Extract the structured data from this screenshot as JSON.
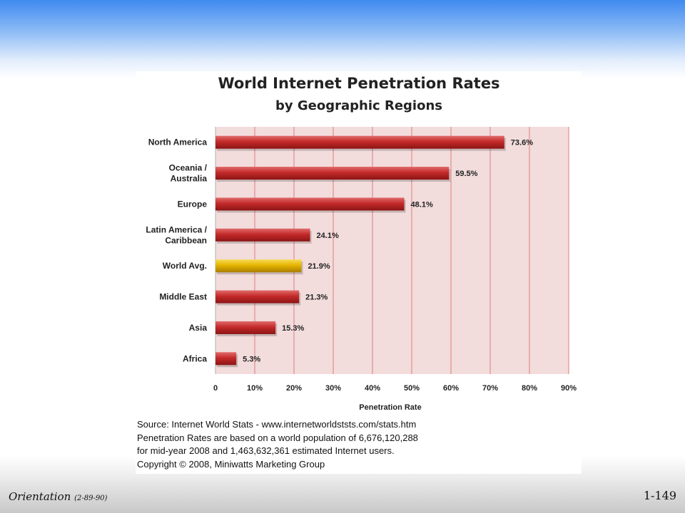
{
  "chart_data": {
    "type": "bar",
    "orientation": "horizontal",
    "title": "World Internet Penetration Rates",
    "subtitle": "by Geographic Regions",
    "categories": [
      [
        "North America"
      ],
      [
        "Oceania  /",
        "Australia"
      ],
      [
        "Europe"
      ],
      [
        "Latin America /",
        "Caribbean"
      ],
      [
        "World Avg."
      ],
      [
        "Middle East"
      ],
      [
        "Asia"
      ],
      [
        "Africa"
      ]
    ],
    "values": [
      73.6,
      59.5,
      48.1,
      24.1,
      21.9,
      21.3,
      15.3,
      5.3
    ],
    "value_labels": [
      "73.6%",
      "59.5%",
      "48.1%",
      "24.1%",
      "21.9%",
      "21.3%",
      "15.3%",
      "5.3%"
    ],
    "highlight_index": 4,
    "xlabel": "Penetration Rate",
    "xlim": [
      0,
      90
    ],
    "xticks": [
      "0",
      "10%",
      "20%",
      "30%",
      "40%",
      "50%",
      "60%",
      "70%",
      "80%",
      "90%"
    ],
    "grid": true,
    "colors": {
      "bar": "#c0282a",
      "highlight": "#e8b400",
      "plot_background": "#f2dcdc",
      "gridline": "#d98080"
    }
  },
  "source_lines": [
    "Source: Internet World Stats - www.internetworldststs.com/stats.htm",
    "Penetration Rates are based on a world population of 6,676,120,288",
    "for mid-year 2008 and 1,463,632,361 estimated Internet users.",
    "Copyright © 2008, Miniwatts Marketing Group"
  ],
  "footer": {
    "left_main": "Orientation",
    "left_small": "(2-89-90)",
    "page_number": "1-149"
  }
}
